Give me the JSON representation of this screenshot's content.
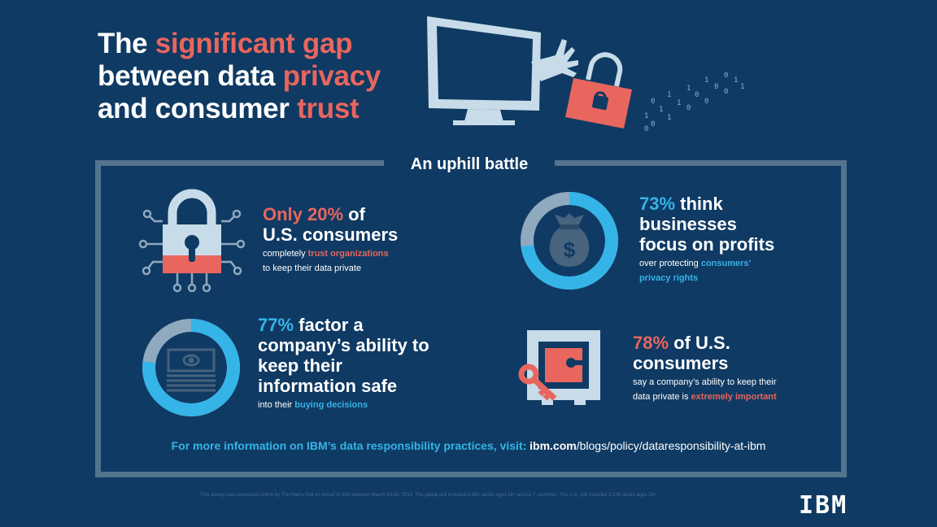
{
  "title": {
    "line1_a": "The ",
    "line1_b": "significant gap",
    "line2_a": "between data ",
    "line2_b": "privacy",
    "line3_a": "and consumer ",
    "line3_b": "trust"
  },
  "section_title": "An uphill battle",
  "colors": {
    "coral": "#e8665e",
    "sky": "#35b4e8",
    "navy": "#0f3a63",
    "frame": "#53738f"
  },
  "stats": [
    {
      "icon": "padlock-circuit-icon",
      "head_a": "Only 20%",
      "head_b": " of",
      "head_c": "U.S. consumers",
      "sub1_a": "completely ",
      "sub1_b": "trust organizations",
      "sub2": "to keep their data private"
    },
    {
      "icon": "money-bag-icon",
      "percent": 73,
      "head_a": "73%",
      "head_b": " think",
      "head_c": "businesses",
      "head_d": "focus on profits",
      "sub1_a": "over protecting ",
      "sub1_b": "consumers’",
      "sub2": "privacy rights"
    },
    {
      "icon": "cash-stack-icon",
      "percent": 77,
      "head_a": "77%",
      "head_b": " factor a",
      "head_c": "company’s ability to",
      "head_d": "keep their",
      "head_e": "information safe",
      "sub1_a": "into their ",
      "sub1_b": "buying decisions"
    },
    {
      "icon": "safe-key-icon",
      "head_a": "78%",
      "head_b": " of U.S.",
      "head_c": "consumers",
      "sub1": "say a company’s ability to keep their",
      "sub2_a": "data private is ",
      "sub2_b": "extremely important"
    }
  ],
  "info_link": {
    "prefix": "For more information on IBM’s data responsibility practices, visit: ",
    "domain": "ibm.com",
    "path": "/blogs/policy/dataresponsibility-at-ibm"
  },
  "disclaimer": "This survey was conducted online by The Harris Poll on behalf of IBM between March 20-28, 2019. The global poll included 8,481 adults ages 18+ across 7 countries. The U.S. poll included 2,039 adults ages 18+.",
  "logo": "IBM",
  "binary_stream": [
    "0",
    "1",
    "1",
    "0",
    "1",
    "0",
    "0",
    "1",
    "1",
    "0",
    "0",
    "1",
    "0",
    "1",
    "1",
    "0",
    "1",
    "0"
  ]
}
